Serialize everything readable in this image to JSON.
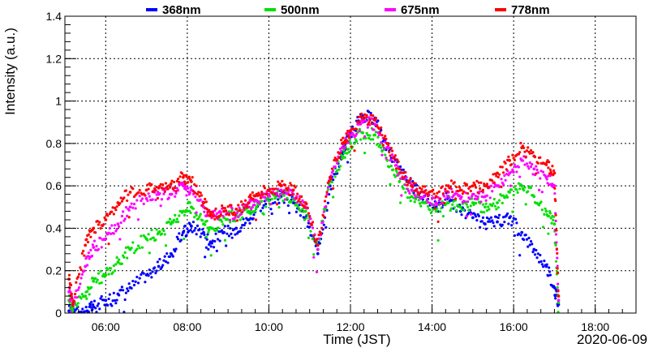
{
  "chart_data": {
    "type": "scatter",
    "xlabel": "Time (JST)",
    "ylabel": "Intensity (a.u.)",
    "date": "2020-06-09",
    "xlim": [
      "05:00",
      "19:00"
    ],
    "ylim": [
      0,
      1.4
    ],
    "x_ticks": [
      "06:00",
      "08:00",
      "10:00",
      "12:00",
      "14:00",
      "16:00",
      "18:00"
    ],
    "y_ticks": [
      "0",
      "0.2",
      "0.4",
      "0.6",
      "0.8",
      "1",
      "1.2",
      "1.4"
    ],
    "grid": true,
    "legend_position": "top",
    "x_unit": "hour of day (JST)",
    "series": [
      {
        "name": "368nm",
        "color": "#0000ff",
        "x": [
          5.1,
          5.2,
          5.55,
          5.7,
          6.0,
          6.3,
          6.6,
          7.0,
          7.3,
          7.6,
          7.9,
          8.1,
          8.4,
          8.6,
          8.9,
          9.2,
          9.5,
          9.7,
          10.0,
          10.3,
          10.6,
          10.9,
          11.2,
          11.5,
          11.8,
          12.0,
          12.3,
          12.6,
          12.9,
          13.2,
          13.5,
          13.8,
          14.1,
          14.4,
          14.7,
          15.0,
          15.3,
          15.6,
          15.9,
          16.2,
          16.5,
          16.8,
          17.0,
          17.1
        ],
        "y": [
          0.01,
          0.02,
          0.01,
          0.03,
          0.06,
          0.09,
          0.12,
          0.18,
          0.22,
          0.28,
          0.38,
          0.41,
          0.38,
          0.33,
          0.38,
          0.4,
          0.44,
          0.5,
          0.53,
          0.55,
          0.52,
          0.45,
          0.28,
          0.6,
          0.75,
          0.85,
          0.93,
          0.92,
          0.78,
          0.68,
          0.6,
          0.55,
          0.5,
          0.55,
          0.48,
          0.45,
          0.42,
          0.43,
          0.45,
          0.38,
          0.3,
          0.22,
          0.12,
          0.04
        ]
      },
      {
        "name": "500nm",
        "color": "#00e000",
        "x": [
          5.1,
          5.2,
          5.5,
          5.7,
          6.0,
          6.3,
          6.6,
          7.0,
          7.3,
          7.6,
          7.9,
          8.1,
          8.4,
          8.6,
          8.9,
          9.2,
          9.5,
          9.7,
          10.0,
          10.3,
          10.6,
          10.9,
          11.2,
          11.5,
          11.8,
          12.0,
          12.3,
          12.6,
          12.9,
          13.2,
          13.5,
          13.8,
          14.1,
          14.4,
          14.7,
          15.0,
          15.3,
          15.6,
          15.9,
          16.2,
          16.5,
          16.8,
          17.0,
          17.1
        ],
        "y": [
          0.06,
          0.03,
          0.08,
          0.15,
          0.18,
          0.24,
          0.3,
          0.35,
          0.38,
          0.42,
          0.48,
          0.5,
          0.42,
          0.4,
          0.45,
          0.46,
          0.48,
          0.5,
          0.53,
          0.56,
          0.54,
          0.48,
          0.3,
          0.62,
          0.73,
          0.8,
          0.85,
          0.84,
          0.72,
          0.62,
          0.55,
          0.52,
          0.48,
          0.52,
          0.5,
          0.52,
          0.5,
          0.52,
          0.57,
          0.6,
          0.55,
          0.48,
          0.42,
          0.05
        ]
      },
      {
        "name": "675nm",
        "color": "#ff00ff",
        "x": [
          5.1,
          5.2,
          5.5,
          5.7,
          6.0,
          6.3,
          6.6,
          7.0,
          7.3,
          7.6,
          7.9,
          8.1,
          8.4,
          8.6,
          8.9,
          9.2,
          9.5,
          9.7,
          10.0,
          10.3,
          10.6,
          10.9,
          11.2,
          11.5,
          11.8,
          12.0,
          12.3,
          12.6,
          12.9,
          13.2,
          13.5,
          13.8,
          14.1,
          14.4,
          14.7,
          15.0,
          15.3,
          15.6,
          15.9,
          16.2,
          16.5,
          16.8,
          17.0,
          17.1
        ],
        "y": [
          0.1,
          0.04,
          0.22,
          0.31,
          0.35,
          0.42,
          0.5,
          0.54,
          0.56,
          0.56,
          0.6,
          0.58,
          0.5,
          0.45,
          0.48,
          0.47,
          0.5,
          0.53,
          0.56,
          0.58,
          0.56,
          0.5,
          0.3,
          0.63,
          0.78,
          0.84,
          0.9,
          0.89,
          0.78,
          0.66,
          0.58,
          0.55,
          0.52,
          0.57,
          0.54,
          0.56,
          0.55,
          0.6,
          0.66,
          0.72,
          0.68,
          0.64,
          0.6,
          0.06
        ]
      },
      {
        "name": "778nm",
        "color": "#ff0000",
        "x": [
          5.1,
          5.2,
          5.5,
          5.7,
          6.0,
          6.3,
          6.6,
          7.0,
          7.3,
          7.6,
          7.9,
          8.1,
          8.4,
          8.6,
          8.9,
          9.2,
          9.5,
          9.7,
          10.0,
          10.3,
          10.6,
          10.9,
          11.2,
          11.5,
          11.8,
          12.0,
          12.3,
          12.6,
          12.9,
          13.2,
          13.5,
          13.8,
          14.1,
          14.4,
          14.7,
          15.0,
          15.3,
          15.6,
          15.9,
          16.2,
          16.5,
          16.8,
          17.0,
          17.1
        ],
        "y": [
          0.16,
          0.05,
          0.32,
          0.4,
          0.44,
          0.52,
          0.57,
          0.58,
          0.59,
          0.61,
          0.64,
          0.62,
          0.52,
          0.46,
          0.48,
          0.49,
          0.52,
          0.56,
          0.58,
          0.6,
          0.58,
          0.52,
          0.32,
          0.64,
          0.8,
          0.86,
          0.92,
          0.91,
          0.8,
          0.68,
          0.6,
          0.57,
          0.55,
          0.6,
          0.58,
          0.6,
          0.6,
          0.66,
          0.72,
          0.78,
          0.74,
          0.7,
          0.66,
          0.08
        ]
      }
    ]
  }
}
